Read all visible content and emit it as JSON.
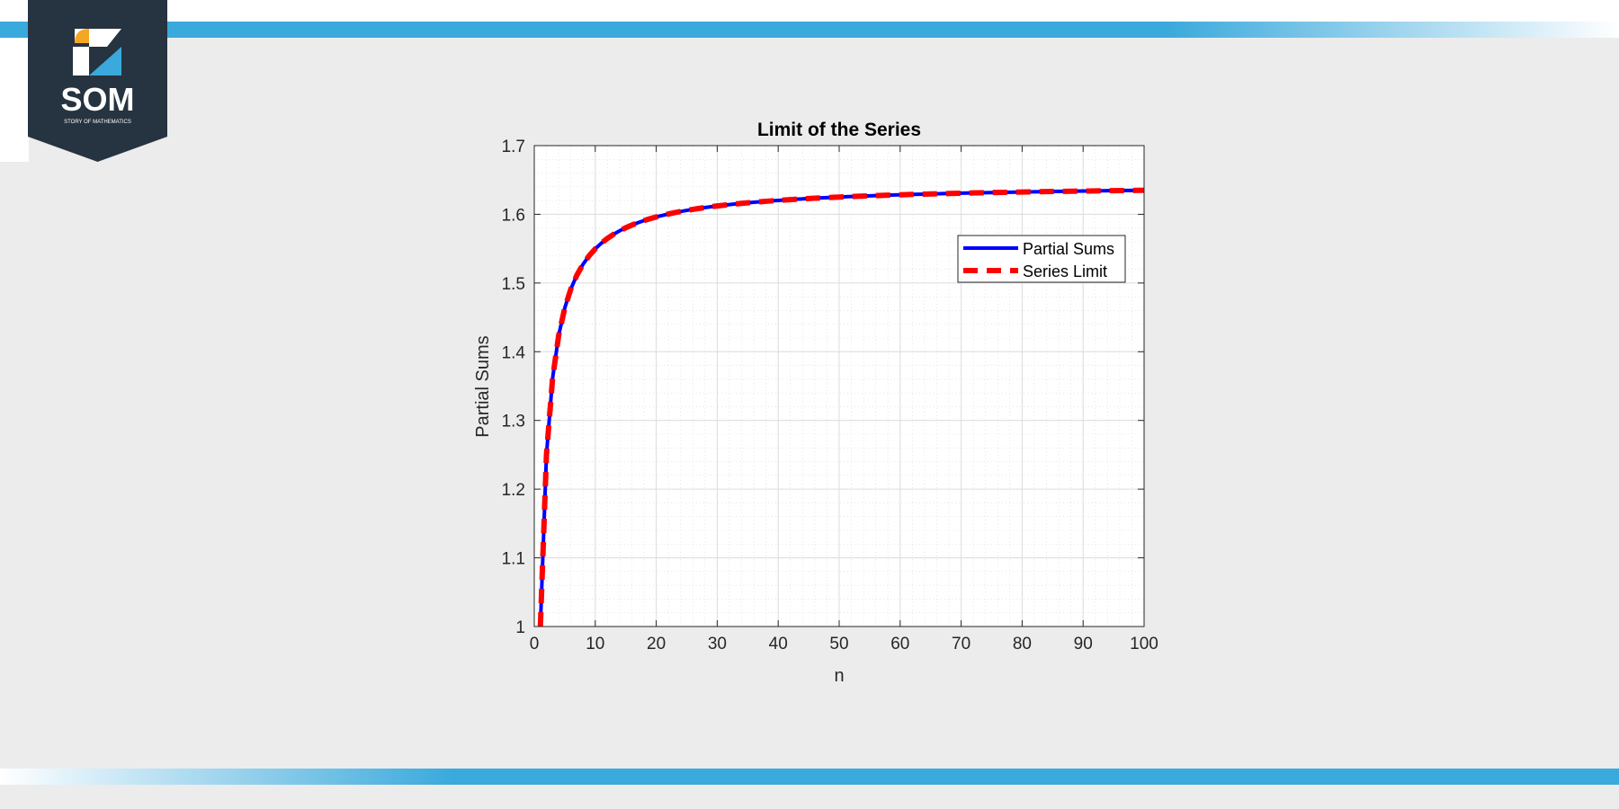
{
  "logo": {
    "text": "SOM",
    "tagline": "STORY OF MATHEMATICS"
  },
  "colors": {
    "accent_band": "#3aa9dc",
    "logo_bg": "#263340",
    "logo_orange": "#f5a623",
    "logo_blue": "#3aa9dc",
    "series_partial": "#0000ff",
    "series_limit": "#ff0000"
  },
  "chart_data": {
    "type": "line",
    "title": "Limit of the Series",
    "xlabel": "n",
    "ylabel": "Partial Sums",
    "xlim": [
      0,
      100
    ],
    "ylim": [
      1,
      1.7
    ],
    "x_ticks": [
      "0",
      "10",
      "20",
      "30",
      "40",
      "50",
      "60",
      "70",
      "80",
      "90",
      "100"
    ],
    "y_ticks": [
      "1",
      "1.1",
      "1.2",
      "1.3",
      "1.4",
      "1.5",
      "1.6",
      "1.7"
    ],
    "grid": true,
    "minor_grid": true,
    "legend_position": "top-right",
    "series": [
      {
        "name": "Partial Sums",
        "style": "solid",
        "color": "#0000ff",
        "function": "sum_{k=1}^{n} 1/k^2",
        "n_range": [
          1,
          100
        ]
      },
      {
        "name": "Series Limit",
        "style": "dashed",
        "color": "#ff0000",
        "function": "sum_{k=1}^{n} 1/k^2",
        "n_range": [
          1,
          100
        ]
      }
    ]
  }
}
